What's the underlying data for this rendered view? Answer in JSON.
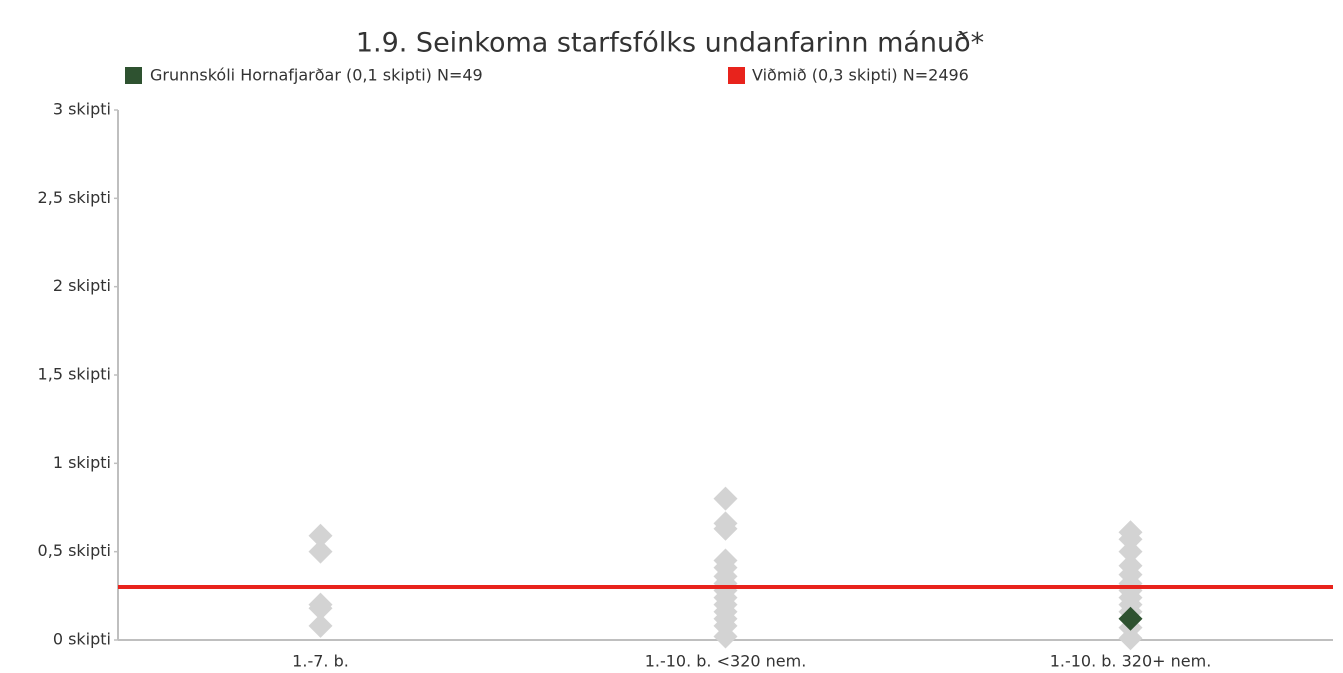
{
  "chart_data": {
    "type": "strip",
    "title": "1.9. Seinkoma starfsfólks undanfarinn mánuð*",
    "categories": [
      "1.-7. b.",
      "1.-10. b. <320 nem.",
      "1.-10. b. 320+ nem."
    ],
    "points": {
      "color": "#d3d3d3",
      "values": [
        [
          0.59,
          0.5,
          0.2,
          0.18,
          0.08
        ],
        [
          0.8,
          0.66,
          0.63,
          0.45,
          0.41,
          0.36,
          0.32,
          0.28,
          0.24,
          0.2,
          0.16,
          0.12,
          0.08,
          0.02
        ],
        [
          0.61,
          0.57,
          0.5,
          0.42,
          0.37,
          0.32,
          0.28,
          0.24,
          0.2,
          0.16,
          0.07,
          0.01
        ]
      ]
    },
    "series": [
      {
        "name": "Grunnskóli Hornafjarðar (0,1 skipti) N=49",
        "color": "#2e5230",
        "values": [
          null,
          null,
          0.12
        ]
      }
    ],
    "reference": {
      "name": "Viðmið (0,3 skipti) N=2496",
      "color": "#e8231c",
      "value": 0.3
    },
    "ylim": [
      0,
      3
    ],
    "yticks": [
      {
        "value": 0,
        "label": "0 skipti"
      },
      {
        "value": 0.5,
        "label": "0,5 skipti"
      },
      {
        "value": 1,
        "label": "1 skipti"
      },
      {
        "value": 1.5,
        "label": "1,5 skipti"
      },
      {
        "value": 2,
        "label": "2 skipti"
      },
      {
        "value": 2.5,
        "label": "2,5 skipti"
      },
      {
        "value": 3,
        "label": "3 skipti"
      }
    ]
  }
}
